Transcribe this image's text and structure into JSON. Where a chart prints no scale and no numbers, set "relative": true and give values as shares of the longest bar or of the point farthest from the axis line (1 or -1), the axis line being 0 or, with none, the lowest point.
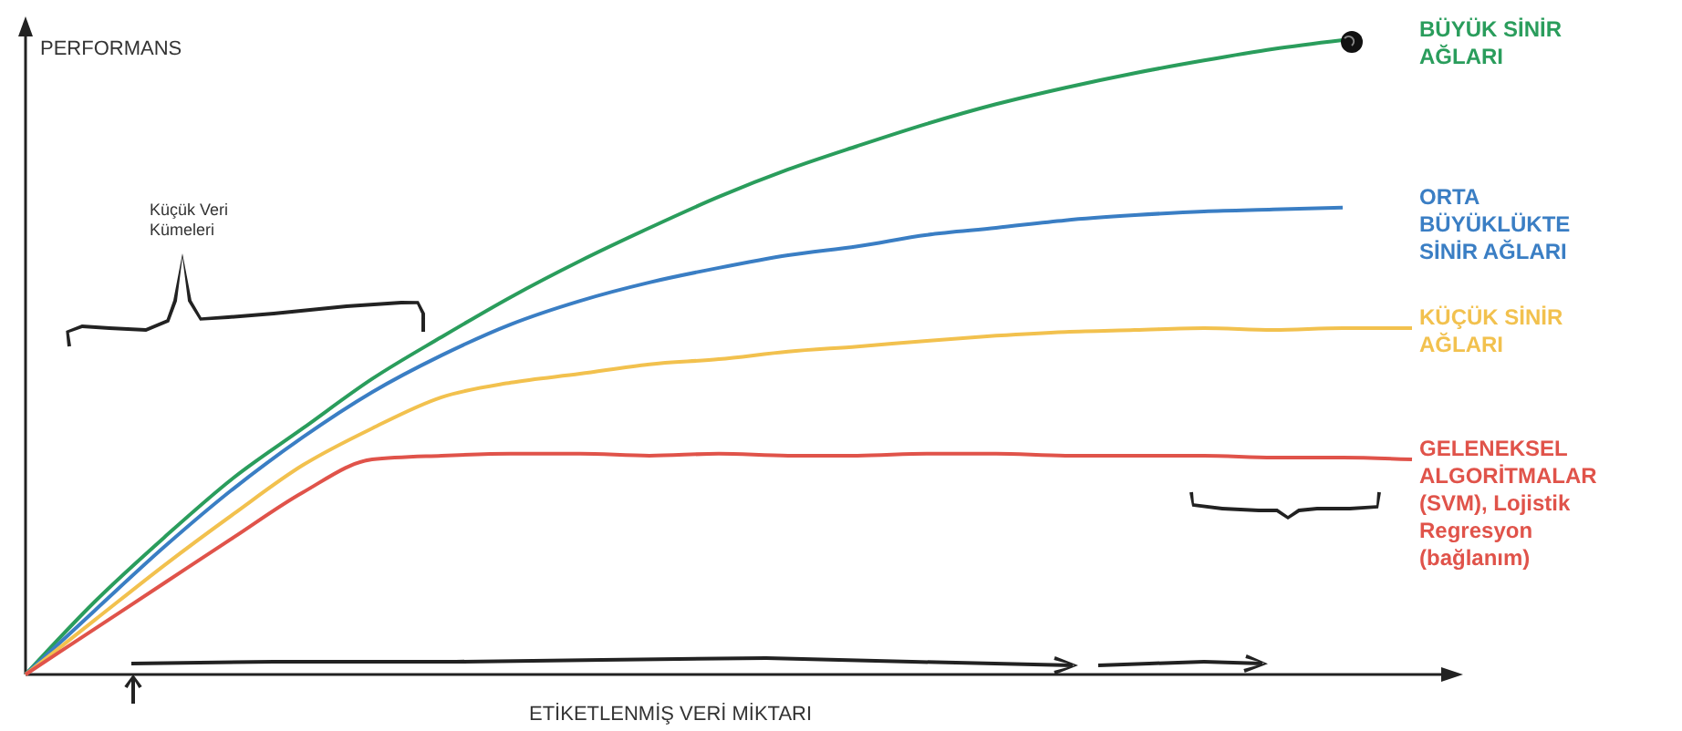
{
  "chart_data": {
    "type": "line",
    "relative": true,
    "xlabel": "ETİKETLENMİŞ VERİ MİKTARI",
    "ylabel": "PERFORMANS",
    "annotations": [
      "Küçük Veri Kümeleri"
    ],
    "categories": [
      null,
      null,
      null,
      null,
      null,
      null,
      null,
      null,
      null,
      null,
      null,
      null,
      null,
      null,
      null,
      null,
      null,
      null,
      null,
      null,
      null
    ],
    "series": [
      {
        "name": "BÜYÜK SİNİR AĞLARI",
        "color": "#2a9d5c",
        "values": [
          0,
          0.115,
          0.216,
          0.31,
          0.388,
          0.466,
          0.532,
          0.595,
          0.652,
          0.704,
          0.753,
          0.796,
          0.833,
          0.868,
          0.899,
          0.925,
          0.948,
          0.968,
          0.986,
          1.0,
          null
        ]
      },
      {
        "name": "ORTA BÜYÜKLÜKTE SİNİR AĞLARI",
        "color": "#3a7ec4",
        "values": [
          0,
          0.101,
          0.201,
          0.293,
          0.374,
          0.445,
          0.503,
          0.552,
          0.589,
          0.618,
          0.641,
          0.661,
          0.675,
          0.693,
          0.704,
          0.716,
          0.724,
          0.73,
          0.733,
          0.736,
          null
        ]
      },
      {
        "name": "KÜÇÜK SİNİR AĞLARI",
        "color": "#f2c14e",
        "values": [
          0,
          0.086,
          0.172,
          0.253,
          0.33,
          0.388,
          0.437,
          0.46,
          0.474,
          0.489,
          0.497,
          0.509,
          0.517,
          0.526,
          0.534,
          0.54,
          0.543,
          0.546,
          0.543,
          0.546,
          0.546
        ]
      },
      {
        "name": "GELENEKSEL ALGORİTMALAR (SVM), Lojistik Regresyon (bağlanım)",
        "color": "#e0534a",
        "values": [
          0,
          0.072,
          0.144,
          0.216,
          0.287,
          0.339,
          0.345,
          0.348,
          0.348,
          0.345,
          0.348,
          0.345,
          0.345,
          0.348,
          0.348,
          0.345,
          0.345,
          0.345,
          0.342,
          0.342,
          0.339
        ]
      }
    ],
    "marker": "none",
    "line_style": "solid",
    "grid": false
  }
}
